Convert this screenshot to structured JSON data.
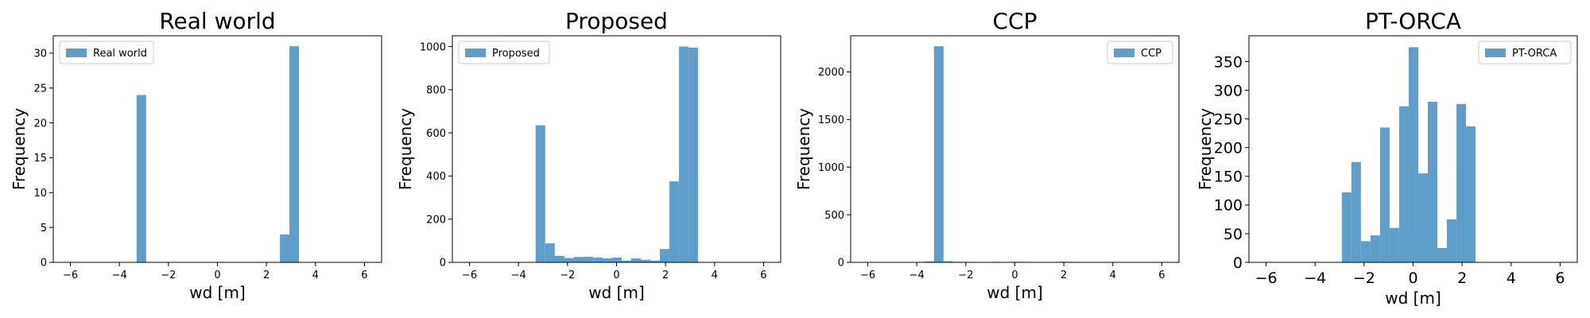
{
  "colors": {
    "bar": "#5f9ec9",
    "axis": "#000000",
    "legend_border": "#cccccc"
  },
  "chart_data": [
    {
      "type": "bar",
      "title": "Real world",
      "xlabel": "wd [m]",
      "ylabel": "Frequency",
      "legend": "Real world",
      "legend_position": "upper-left",
      "xlim": [
        -6.7,
        6.7
      ],
      "ylim": [
        0,
        32.5
      ],
      "xticks": [
        -6,
        -4,
        -2,
        0,
        2,
        4,
        6
      ],
      "yticks": [
        0,
        5,
        10,
        15,
        20,
        25,
        30
      ],
      "grid": false,
      "bin_width": 0.39,
      "bins": [
        [
          -3.3,
          24
        ],
        [
          2.55,
          4
        ],
        [
          2.94,
          31
        ]
      ]
    },
    {
      "type": "bar",
      "title": "Proposed",
      "xlabel": "wd [m]",
      "ylabel": "Frequency",
      "legend": "Proposed",
      "legend_position": "upper-left",
      "xlim": [
        -6.7,
        6.7
      ],
      "ylim": [
        0,
        1050
      ],
      "xticks": [
        -6,
        -4,
        -2,
        0,
        2,
        4,
        6
      ],
      "yticks": [
        0,
        200,
        400,
        600,
        800,
        1000
      ],
      "grid": false,
      "bin_width": 0.39,
      "bins": [
        [
          -3.3,
          635
        ],
        [
          -2.91,
          88
        ],
        [
          -2.52,
          30
        ],
        [
          -2.13,
          20
        ],
        [
          -1.74,
          25
        ],
        [
          -1.35,
          26
        ],
        [
          -0.96,
          22
        ],
        [
          -0.57,
          19
        ],
        [
          -0.18,
          22
        ],
        [
          0.21,
          8
        ],
        [
          0.6,
          18
        ],
        [
          0.99,
          12
        ],
        [
          1.38,
          8
        ],
        [
          1.77,
          62
        ],
        [
          2.16,
          375
        ],
        [
          2.55,
          1000
        ],
        [
          2.94,
          995
        ]
      ]
    },
    {
      "type": "bar",
      "title": "CCP",
      "xlabel": "wd [m]",
      "ylabel": "Frequency",
      "legend": "CCP",
      "legend_position": "upper-right",
      "xlim": [
        -6.7,
        6.7
      ],
      "ylim": [
        0,
        2380
      ],
      "xticks": [
        -6,
        -4,
        -2,
        0,
        2,
        4,
        6
      ],
      "yticks": [
        0,
        500,
        1000,
        1500,
        2000
      ],
      "grid": false,
      "bin_width": 0.39,
      "bins": [
        [
          -3.69,
          10
        ],
        [
          -3.3,
          2270
        ],
        [
          -2.91,
          12
        ],
        [
          -2.52,
          6
        ],
        [
          -2.13,
          5
        ],
        [
          -1.74,
          4
        ],
        [
          -1.35,
          4
        ],
        [
          -0.96,
          5
        ],
        [
          -0.57,
          4
        ],
        [
          -0.18,
          6
        ],
        [
          0.21,
          5
        ],
        [
          0.6,
          3
        ],
        [
          0.99,
          2
        ],
        [
          1.38,
          4
        ],
        [
          1.77,
          6
        ],
        [
          2.16,
          5
        ]
      ]
    },
    {
      "type": "bar",
      "title": "PT-ORCA",
      "xlabel": "wd [m]",
      "ylabel": "Frequency",
      "legend": "PT-ORCA",
      "legend_position": "upper-right",
      "xlim": [
        -6.7,
        6.7
      ],
      "ylim": [
        0,
        395
      ],
      "xticks": [
        -6,
        -4,
        -2,
        0,
        2,
        4,
        6
      ],
      "yticks": [
        0,
        50,
        100,
        150,
        200,
        250,
        300,
        350
      ],
      "grid": false,
      "bin_width": 0.39,
      "bins": [
        [
          -2.91,
          122
        ],
        [
          -2.52,
          175
        ],
        [
          -2.13,
          37
        ],
        [
          -1.74,
          47
        ],
        [
          -1.35,
          235
        ],
        [
          -0.96,
          60
        ],
        [
          -0.57,
          272
        ],
        [
          -0.18,
          375
        ],
        [
          0.21,
          155
        ],
        [
          0.6,
          280
        ],
        [
          0.99,
          25
        ],
        [
          1.38,
          75
        ],
        [
          1.77,
          276
        ],
        [
          2.16,
          237
        ]
      ]
    }
  ]
}
